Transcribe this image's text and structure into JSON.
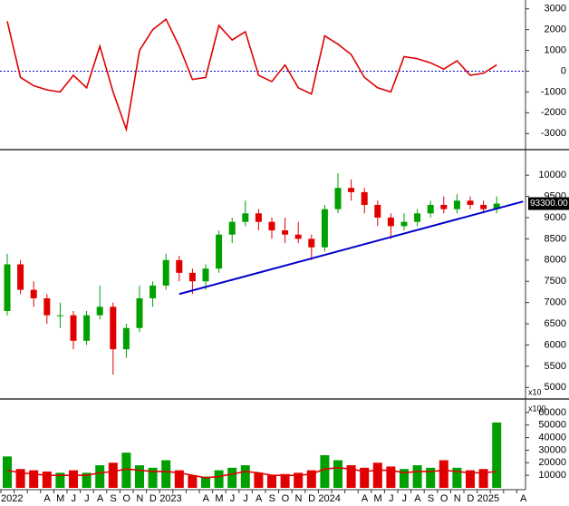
{
  "chart_data": [
    {
      "type": "line",
      "panel": "oscillator",
      "ylim": [
        -3470,
        3250
      ],
      "yticks": [
        3000,
        2000,
        1000,
        0,
        -1000,
        -2000,
        -3000
      ],
      "zero_line_color": "#0000cc",
      "series": [
        {
          "color": "#e00000",
          "values": [
            2400,
            -300,
            -700,
            -900,
            -1000,
            -200,
            -800,
            1200,
            -1000,
            -2800,
            1000,
            2000,
            2500,
            1200,
            -400,
            -300,
            2200,
            1500,
            1900,
            -200,
            -500,
            300,
            -800,
            -1100,
            1700,
            1300,
            800,
            -300,
            -800,
            -1000,
            700,
            600,
            400,
            100,
            500,
            -200,
            -100,
            300,
            null,
            null
          ]
        }
      ]
    },
    {
      "type": "candlestick",
      "panel": "price",
      "ylim": [
        4750,
        10580
      ],
      "yticks": [
        10000,
        9500,
        9000,
        8500,
        8000,
        7500,
        7000,
        6500,
        6000,
        5500,
        5000
      ],
      "axis_multiplier_label": "x10",
      "up_color": "#00a000",
      "down_color": "#e00000",
      "open": [
        6800,
        7900,
        7300,
        7100,
        6700,
        6700,
        6100,
        6700,
        6900,
        5900,
        6400,
        7100,
        7400,
        8000,
        7700,
        7500,
        7800,
        8600,
        8900,
        9100,
        8900,
        8700,
        8600,
        8500,
        8300,
        9200,
        9700,
        9600,
        9300,
        9000,
        8800,
        8900,
        9100,
        9300,
        9200,
        9400,
        9300,
        9200,
        null,
        null
      ],
      "high": [
        8150,
        8000,
        7500,
        7200,
        7000,
        6800,
        6800,
        7400,
        7000,
        6500,
        7400,
        7500,
        8150,
        8100,
        7800,
        7900,
        8700,
        9000,
        9400,
        9200,
        9000,
        9000,
        8900,
        8600,
        9300,
        10050,
        9900,
        9700,
        9400,
        9100,
        9100,
        9200,
        9400,
        9500,
        9550,
        9500,
        9400,
        9500,
        null,
        null
      ],
      "low": [
        6700,
        7200,
        6900,
        6500,
        6400,
        5900,
        6000,
        6600,
        5300,
        5700,
        6300,
        6900,
        7300,
        7500,
        7200,
        7300,
        7700,
        8400,
        8800,
        8700,
        8500,
        8400,
        8400,
        8000,
        8200,
        9100,
        9400,
        9100,
        8800,
        8500,
        8700,
        8800,
        9000,
        9100,
        9100,
        9200,
        9100,
        9100,
        null,
        null
      ],
      "close": [
        7900,
        7300,
        7100,
        6700,
        6700,
        6100,
        6700,
        6900,
        5900,
        6400,
        7100,
        7400,
        8000,
        7700,
        7500,
        7800,
        8600,
        8900,
        9100,
        8900,
        8700,
        8600,
        8500,
        8300,
        9200,
        9700,
        9600,
        9300,
        9000,
        8800,
        8900,
        9100,
        9300,
        9200,
        9400,
        9300,
        9200,
        9330,
        null,
        null
      ],
      "last_value": 9330,
      "last_value_label": "93300.00",
      "trendline": {
        "color": "#0000cc",
        "values": [
          null,
          null,
          null,
          null,
          null,
          null,
          null,
          null,
          null,
          null,
          null,
          null,
          null,
          7200,
          null,
          null,
          null,
          null,
          null,
          null,
          null,
          null,
          null,
          null,
          null,
          null,
          null,
          null,
          null,
          null,
          null,
          null,
          null,
          null,
          null,
          null,
          null,
          null,
          null,
          9380
        ]
      }
    },
    {
      "type": "bar",
      "panel": "volume",
      "ylim": [
        0,
        70000
      ],
      "yticks": [
        60000,
        50000,
        40000,
        30000,
        20000,
        10000
      ],
      "axis_multiplier_label": "x100",
      "values": [
        25000,
        15000,
        14000,
        13000,
        12000,
        14000,
        12000,
        18000,
        20000,
        28000,
        18000,
        16000,
        22000,
        14000,
        10000,
        9000,
        14000,
        16000,
        18000,
        12000,
        10000,
        11000,
        12000,
        14000,
        26000,
        22000,
        18000,
        16000,
        20000,
        17000,
        15000,
        18000,
        16000,
        22000,
        16000,
        14000,
        15000,
        52000,
        null,
        null
      ],
      "moving_average": {
        "color": "#e00000",
        "values": [
          14000,
          12000,
          11000,
          10000,
          10000,
          10000,
          10000,
          12000,
          13000,
          15000,
          14000,
          13000,
          13000,
          12000,
          10000,
          8000,
          9000,
          11000,
          13000,
          12000,
          10000,
          10000,
          10000,
          11000,
          15000,
          16000,
          15000,
          13000,
          14000,
          14000,
          12000,
          13000,
          13000,
          14000,
          13000,
          12000,
          12000,
          13000,
          null,
          null
        ]
      },
      "categories": [
        "2022",
        null,
        null,
        "A",
        "M",
        "J",
        "J",
        "A",
        "S",
        "O",
        "N",
        "D",
        "2023",
        null,
        null,
        "A",
        "M",
        "J",
        "J",
        "A",
        "S",
        "O",
        "N",
        "D",
        "2024",
        null,
        null,
        "A",
        "M",
        "J",
        "J",
        "A",
        "S",
        "O",
        "N",
        "D",
        "2025",
        null,
        null,
        "A"
      ]
    }
  ]
}
